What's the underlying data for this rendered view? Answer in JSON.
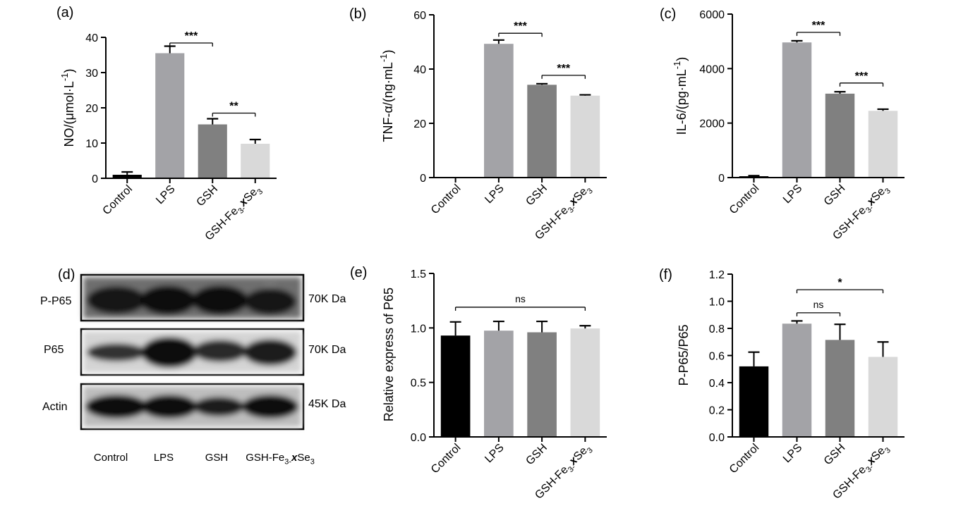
{
  "chart_data": [
    {
      "panel": "(a)",
      "type": "bar",
      "categories": [
        "Control",
        "LPS",
        "GSH",
        "GSH-Fe3-xSe3"
      ],
      "category_labels": [
        {
          "parts": [
            {
              "t": "Control"
            }
          ]
        },
        {
          "parts": [
            {
              "t": "LPS"
            }
          ]
        },
        {
          "parts": [
            {
              "t": "GSH"
            }
          ]
        },
        {
          "parts": [
            {
              "t": "GSH-Fe"
            },
            {
              "t": "3-",
              "sub": true
            },
            {
              "t": "x",
              "italic": true,
              "bold": true
            },
            {
              "t": "Se"
            },
            {
              "t": "3",
              "sub": true
            }
          ]
        }
      ],
      "values": [
        1.0,
        35.5,
        15.3,
        9.8
      ],
      "errors": [
        0.8,
        2.0,
        1.6,
        1.2
      ],
      "colors": [
        "#000000",
        "#a3a3a7",
        "#808080",
        "#d9d9d9"
      ],
      "ylim": [
        0,
        40
      ],
      "yticks": [
        "0",
        "10",
        "20",
        "30",
        "40"
      ],
      "ylabel_parts": [
        {
          "t": "NO/(μmol·L"
        },
        {
          "t": "-1",
          "sup": true
        },
        {
          "t": ")"
        }
      ],
      "significance": [
        {
          "from": 1,
          "to": 2,
          "label": "***",
          "level": 38.4
        },
        {
          "from": 2,
          "to": 3,
          "label": "**",
          "level": 18.5
        }
      ]
    },
    {
      "panel": "(b)",
      "type": "bar",
      "categories": [
        "Control",
        "LPS",
        "GSH",
        "GSH-Fe3-xSe3"
      ],
      "category_labels": [
        {
          "parts": [
            {
              "t": "Control"
            }
          ]
        },
        {
          "parts": [
            {
              "t": "LPS"
            }
          ]
        },
        {
          "parts": [
            {
              "t": "GSH"
            }
          ]
        },
        {
          "parts": [
            {
              "t": "GSH-Fe"
            },
            {
              "t": "3-",
              "sub": true
            },
            {
              "t": "x",
              "italic": true,
              "bold": true
            },
            {
              "t": "Se"
            },
            {
              "t": "3",
              "sub": true
            }
          ]
        }
      ],
      "values": [
        0,
        49.3,
        34.2,
        30.2
      ],
      "errors": [
        0,
        1.4,
        0.4,
        0.3
      ],
      "colors": [
        "#000000",
        "#a3a3a7",
        "#808080",
        "#d9d9d9"
      ],
      "ylim": [
        0,
        60
      ],
      "yticks": [
        "0",
        "20",
        "40",
        "60"
      ],
      "ylabel_parts": [
        {
          "t": "TNF-α/(ng·mL"
        },
        {
          "t": "-1",
          "sup": true
        },
        {
          "t": ")"
        }
      ],
      "significance": [
        {
          "from": 1,
          "to": 2,
          "label": "***",
          "level": 53.2
        },
        {
          "from": 2,
          "to": 3,
          "label": "***",
          "level": 37.7
        }
      ]
    },
    {
      "panel": "(c)",
      "type": "bar",
      "categories": [
        "Control",
        "LPS",
        "GSH",
        "GSH-Fe3-xSe3"
      ],
      "category_labels": [
        {
          "parts": [
            {
              "t": "Control"
            }
          ]
        },
        {
          "parts": [
            {
              "t": "LPS"
            }
          ]
        },
        {
          "parts": [
            {
              "t": "GSH"
            }
          ]
        },
        {
          "parts": [
            {
              "t": "GSH-Fe"
            },
            {
              "t": "3-",
              "sub": true
            },
            {
              "t": "x",
              "italic": true,
              "bold": true
            },
            {
              "t": "Se"
            },
            {
              "t": "3",
              "sub": true
            }
          ]
        }
      ],
      "values": [
        50,
        4960,
        3080,
        2450
      ],
      "errors": [
        20,
        60,
        70,
        60
      ],
      "colors": [
        "#000000",
        "#a3a3a7",
        "#808080",
        "#d9d9d9"
      ],
      "ylim": [
        0,
        6000
      ],
      "yticks": [
        "0",
        "2000",
        "4000",
        "6000"
      ],
      "ylabel_parts": [
        {
          "t": "IL-6/(pg·mL"
        },
        {
          "t": "-1",
          "sup": true
        },
        {
          "t": ")"
        }
      ],
      "significance": [
        {
          "from": 1,
          "to": 2,
          "label": "***",
          "level": 5330
        },
        {
          "from": 2,
          "to": 3,
          "label": "***",
          "level": 3470
        }
      ]
    },
    {
      "panel": "(e)",
      "type": "bar",
      "categories": [
        "Control",
        "LPS",
        "GSH",
        "GSH-Fe3-xSe3"
      ],
      "category_labels": [
        {
          "parts": [
            {
              "t": "Control"
            }
          ]
        },
        {
          "parts": [
            {
              "t": "LPS"
            }
          ]
        },
        {
          "parts": [
            {
              "t": "GSH"
            }
          ]
        },
        {
          "parts": [
            {
              "t": "GSH-Fe"
            },
            {
              "t": "3-",
              "sub": true
            },
            {
              "t": "x",
              "italic": true,
              "bold": true
            },
            {
              "t": "Se"
            },
            {
              "t": "3",
              "sub": true
            }
          ]
        }
      ],
      "values": [
        0.93,
        0.975,
        0.96,
        0.995
      ],
      "errors": [
        0.125,
        0.085,
        0.1,
        0.025
      ],
      "colors": [
        "#000000",
        "#a3a3a7",
        "#808080",
        "#d9d9d9"
      ],
      "ylim": [
        0,
        1.5
      ],
      "yticks": [
        "0.0",
        "0.5",
        "1.0",
        "1.5"
      ],
      "ylabel_parts": [
        {
          "t": "Relative express of P65"
        }
      ],
      "significance": [
        {
          "from": 0,
          "to": 3,
          "label": "ns",
          "level": 1.19
        }
      ]
    },
    {
      "panel": "(f)",
      "type": "bar",
      "categories": [
        "Control",
        "LPS",
        "GSH",
        "GSH-Fe3-xSe3"
      ],
      "category_labels": [
        {
          "parts": [
            {
              "t": "Control"
            }
          ]
        },
        {
          "parts": [
            {
              "t": "LPS"
            }
          ]
        },
        {
          "parts": [
            {
              "t": "GSH"
            }
          ]
        },
        {
          "parts": [
            {
              "t": "GSH-Fe"
            },
            {
              "t": "3-",
              "sub": true
            },
            {
              "t": "x",
              "italic": true,
              "bold": true
            },
            {
              "t": "Se"
            },
            {
              "t": "3",
              "sub": true
            }
          ]
        }
      ],
      "values": [
        0.52,
        0.835,
        0.715,
        0.59
      ],
      "errors": [
        0.105,
        0.02,
        0.115,
        0.11
      ],
      "colors": [
        "#000000",
        "#a3a3a7",
        "#808080",
        "#d9d9d9"
      ],
      "ylim": [
        0,
        1.2
      ],
      "yticks": [
        "0.0",
        "0.2",
        "0.4",
        "0.6",
        "0.8",
        "1.0",
        "1.2"
      ],
      "ylabel_parts": [
        {
          "t": "P-P65/P65"
        }
      ],
      "significance": [
        {
          "from": 1,
          "to": 2,
          "label": "ns",
          "level": 0.915
        },
        {
          "from": 1,
          "to": 3,
          "label": "*",
          "level": 1.085
        }
      ]
    }
  ],
  "western_blot": {
    "panel": "(d)",
    "rows": [
      {
        "protein": "P-P65",
        "size": "70K Da"
      },
      {
        "protein": "P65",
        "size": "70K Da"
      },
      {
        "protein": "Actin",
        "size": "45K Da"
      }
    ],
    "lanes": [
      {
        "parts": [
          {
            "t": "Control"
          }
        ]
      },
      {
        "parts": [
          {
            "t": "LPS"
          }
        ]
      },
      {
        "parts": [
          {
            "t": "GSH"
          }
        ]
      },
      {
        "parts": [
          {
            "t": "GSH-Fe"
          },
          {
            "t": "3-",
            "sub": true
          },
          {
            "t": "x",
            "italic": true,
            "bold": true
          },
          {
            "t": "Se"
          },
          {
            "t": "3",
            "sub": true
          }
        ]
      }
    ]
  }
}
